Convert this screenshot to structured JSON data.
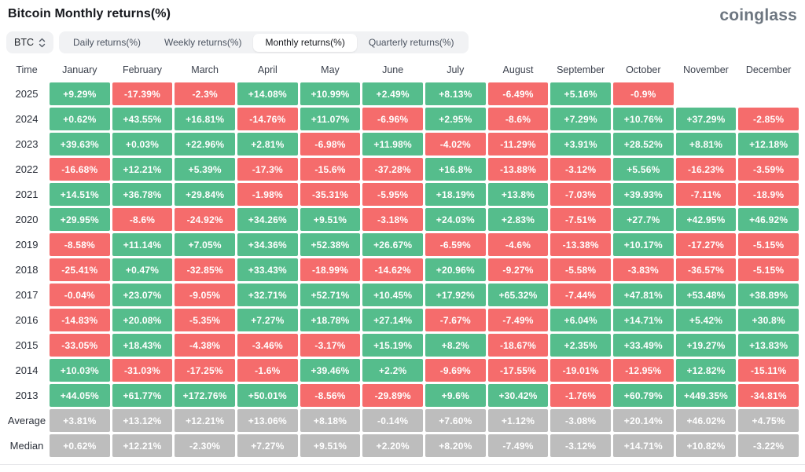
{
  "page": {
    "title": "Bitcoin Monthly returns(%)",
    "logo": "coinglass"
  },
  "toolbar": {
    "symbol_selector": {
      "label": "BTC",
      "icon": "up-down-chevron-icon"
    },
    "tabs": [
      {
        "label": "Daily returns(%)",
        "active": false
      },
      {
        "label": "Weekly returns(%)",
        "active": false
      },
      {
        "label": "Monthly returns(%)",
        "active": true
      },
      {
        "label": "Quarterly returns(%)",
        "active": false
      }
    ]
  },
  "colors": {
    "positive": "#55bd8c",
    "negative": "#f56c6c",
    "summary": "#bdbdbd",
    "divider": "#e7e7ea"
  },
  "chart_data": {
    "type": "heatmap",
    "title": "Bitcoin Monthly returns(%)",
    "corner_label": "Time",
    "columns": [
      "January",
      "February",
      "March",
      "April",
      "May",
      "June",
      "July",
      "August",
      "September",
      "October",
      "November",
      "December"
    ],
    "rows": [
      {
        "label": "2025",
        "type": "year",
        "values": [
          "+9.29%",
          "-17.39%",
          "-2.3%",
          "+14.08%",
          "+10.99%",
          "+2.49%",
          "+8.13%",
          "-6.49%",
          "+5.16%",
          "-0.9%",
          null,
          null
        ]
      },
      {
        "label": "2024",
        "type": "year",
        "values": [
          "+0.62%",
          "+43.55%",
          "+16.81%",
          "-14.76%",
          "+11.07%",
          "-6.96%",
          "+2.95%",
          "-8.6%",
          "+7.29%",
          "+10.76%",
          "+37.29%",
          "-2.85%"
        ]
      },
      {
        "label": "2023",
        "type": "year",
        "values": [
          "+39.63%",
          "+0.03%",
          "+22.96%",
          "+2.81%",
          "-6.98%",
          "+11.98%",
          "-4.02%",
          "-11.29%",
          "+3.91%",
          "+28.52%",
          "+8.81%",
          "+12.18%"
        ]
      },
      {
        "label": "2022",
        "type": "year",
        "values": [
          "-16.68%",
          "+12.21%",
          "+5.39%",
          "-17.3%",
          "-15.6%",
          "-37.28%",
          "+16.8%",
          "-13.88%",
          "-3.12%",
          "+5.56%",
          "-16.23%",
          "-3.59%"
        ]
      },
      {
        "label": "2021",
        "type": "year",
        "values": [
          "+14.51%",
          "+36.78%",
          "+29.84%",
          "-1.98%",
          "-35.31%",
          "-5.95%",
          "+18.19%",
          "+13.8%",
          "-7.03%",
          "+39.93%",
          "-7.11%",
          "-18.9%"
        ]
      },
      {
        "label": "2020",
        "type": "year",
        "values": [
          "+29.95%",
          "-8.6%",
          "-24.92%",
          "+34.26%",
          "+9.51%",
          "-3.18%",
          "+24.03%",
          "+2.83%",
          "-7.51%",
          "+27.7%",
          "+42.95%",
          "+46.92%"
        ]
      },
      {
        "label": "2019",
        "type": "year",
        "values": [
          "-8.58%",
          "+11.14%",
          "+7.05%",
          "+34.36%",
          "+52.38%",
          "+26.67%",
          "-6.59%",
          "-4.6%",
          "-13.38%",
          "+10.17%",
          "-17.27%",
          "-5.15%"
        ]
      },
      {
        "label": "2018",
        "type": "year",
        "values": [
          "-25.41%",
          "+0.47%",
          "-32.85%",
          "+33.43%",
          "-18.99%",
          "-14.62%",
          "+20.96%",
          "-9.27%",
          "-5.58%",
          "-3.83%",
          "-36.57%",
          "-5.15%"
        ]
      },
      {
        "label": "2017",
        "type": "year",
        "values": [
          "-0.04%",
          "+23.07%",
          "-9.05%",
          "+32.71%",
          "+52.71%",
          "+10.45%",
          "+17.92%",
          "+65.32%",
          "-7.44%",
          "+47.81%",
          "+53.48%",
          "+38.89%"
        ]
      },
      {
        "label": "2016",
        "type": "year",
        "values": [
          "-14.83%",
          "+20.08%",
          "-5.35%",
          "+7.27%",
          "+18.78%",
          "+27.14%",
          "-7.67%",
          "-7.49%",
          "+6.04%",
          "+14.71%",
          "+5.42%",
          "+30.8%"
        ]
      },
      {
        "label": "2015",
        "type": "year",
        "values": [
          "-33.05%",
          "+18.43%",
          "-4.38%",
          "-3.46%",
          "-3.17%",
          "+15.19%",
          "+8.2%",
          "-18.67%",
          "+2.35%",
          "+33.49%",
          "+19.27%",
          "+13.83%"
        ]
      },
      {
        "label": "2014",
        "type": "year",
        "values": [
          "+10.03%",
          "-31.03%",
          "-17.25%",
          "-1.6%",
          "+39.46%",
          "+2.2%",
          "-9.69%",
          "-17.55%",
          "-19.01%",
          "-12.95%",
          "+12.82%",
          "-15.11%"
        ]
      },
      {
        "label": "2013",
        "type": "year",
        "values": [
          "+44.05%",
          "+61.77%",
          "+172.76%",
          "+50.01%",
          "-8.56%",
          "-29.89%",
          "+9.6%",
          "+30.42%",
          "-1.76%",
          "+60.79%",
          "+449.35%",
          "-34.81%"
        ]
      },
      {
        "label": "Average",
        "type": "summary",
        "values": [
          "+3.81%",
          "+13.12%",
          "+12.21%",
          "+13.06%",
          "+8.18%",
          "-0.14%",
          "+7.60%",
          "+1.12%",
          "-3.08%",
          "+20.14%",
          "+46.02%",
          "+4.75%"
        ]
      },
      {
        "label": "Median",
        "type": "summary",
        "values": [
          "+0.62%",
          "+12.21%",
          "-2.30%",
          "+7.27%",
          "+9.51%",
          "+2.20%",
          "+8.20%",
          "-7.49%",
          "-3.12%",
          "+14.71%",
          "+10.82%",
          "-3.22%"
        ]
      }
    ]
  }
}
